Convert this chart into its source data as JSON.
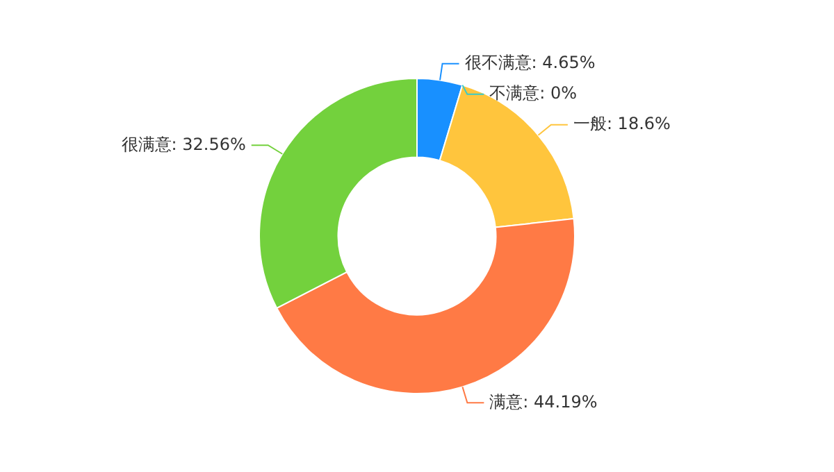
{
  "chart_data": {
    "type": "donut",
    "categories": [
      "很不满意",
      "不满意",
      "一般",
      "满意",
      "很满意"
    ],
    "values": [
      4.65,
      0,
      18.6,
      44.19,
      32.56
    ],
    "value_labels": [
      ": 4.65%",
      ": 0%",
      ": 18.6%",
      ": 44.19%",
      ": 32.56%"
    ],
    "colors": [
      "#1890ff",
      "#36cbcb",
      "#ffc53d",
      "#ff7a45",
      "#73d13d"
    ]
  }
}
